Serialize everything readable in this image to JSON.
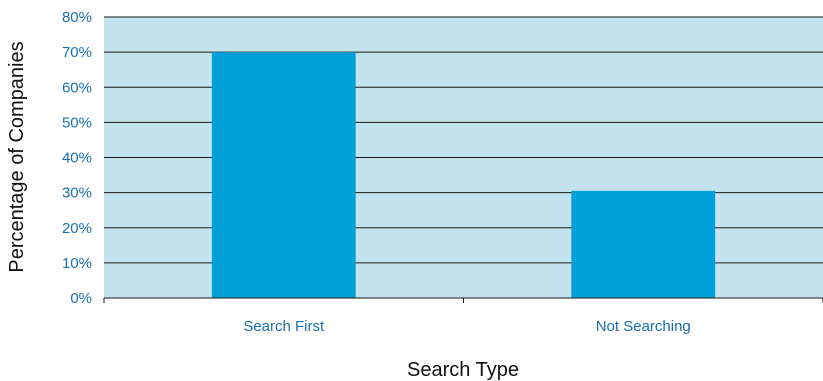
{
  "chart_data": {
    "type": "bar",
    "title": "",
    "xlabel": "Search Type",
    "ylabel": "Percentage of Companies",
    "categories": [
      "Search First",
      "Not Searching"
    ],
    "values": [
      70,
      30.5
    ],
    "ylim": [
      0,
      80
    ],
    "yticks": [
      0,
      10,
      20,
      30,
      40,
      50,
      60,
      70,
      80
    ],
    "ytick_labels": [
      "0%",
      "10%",
      "20%",
      "30%",
      "40%",
      "50%",
      "60%",
      "70%",
      "80%"
    ],
    "grid": true,
    "legend": "none",
    "colors": {
      "bar": "#00a0d8",
      "plot_background": "#c3e4ee",
      "tick_text": "#1a6fb0",
      "axis_title": "#111111",
      "gridline": "#1a1a1a"
    }
  }
}
